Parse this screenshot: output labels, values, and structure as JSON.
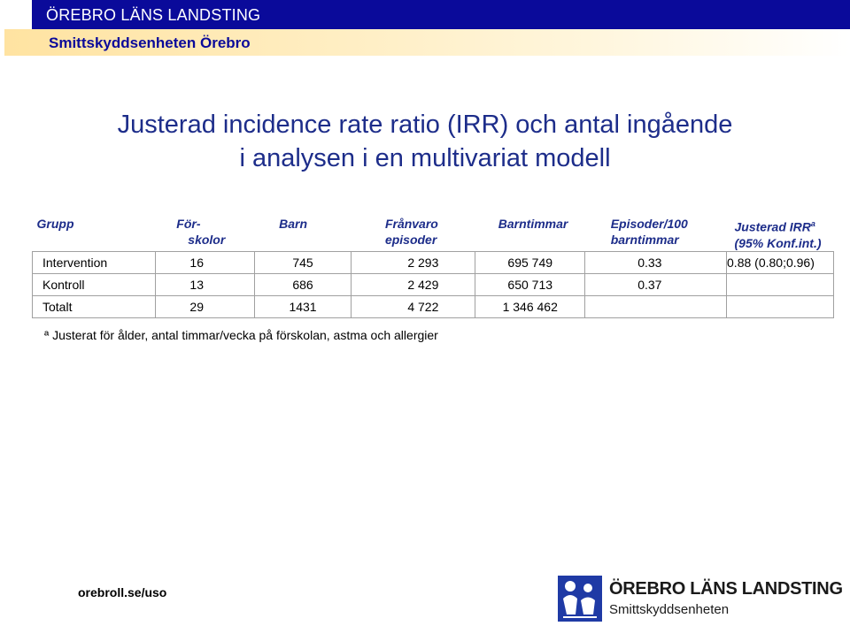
{
  "header": {
    "org_name": "ÖREBRO LÄNS LANDSTING",
    "unit_name": "Smittskyddsenheten Örebro"
  },
  "title": {
    "line1": "Justerad incidence rate ratio (IRR) och antal ingående",
    "line2": "i analysen i en multivariat modell"
  },
  "table": {
    "headers": {
      "grupp": "Grupp",
      "forskolor_1": "För-",
      "forskolor_2": "skolor",
      "barn": "Barn",
      "franvaro_1": "Frånvaro",
      "franvaro_2": "episoder",
      "barntimmar": "Barntimmar",
      "episoder_1": "Episoder/100",
      "episoder_2": "barntimmar",
      "irr_1": "Justerad IRR",
      "irr_sup": "a",
      "irr_2": "(95% Konf.int.)"
    },
    "rows": [
      {
        "grupp": "Intervention",
        "forskolor": "16",
        "barn": "745",
        "franvaro": "2 293",
        "barntimmar": "695 749",
        "episoder": "0.33",
        "irr": "0.88 (0.80;0.96)"
      },
      {
        "grupp": "Kontroll",
        "forskolor": "13",
        "barn": "686",
        "franvaro": "2 429",
        "barntimmar": "650 713",
        "episoder": "0.37",
        "irr": ""
      },
      {
        "grupp": "Totalt",
        "forskolor": "29",
        "barn": "1431",
        "franvaro": "4 722",
        "barntimmar": "1 346 462",
        "episoder": "",
        "irr": ""
      }
    ]
  },
  "footnote": "ª Justerat för ålder, antal timmar/vecka på förskolan, astma och allergier",
  "footer": {
    "link": "orebroll.se/uso",
    "logo_name": "ÖREBRO LÄNS LANDSTING",
    "logo_sub": "Smittskyddsenheten",
    "logo_color": "#1f3aa5"
  },
  "colors": {
    "header_blue": "#0a0a9a",
    "title_blue": "#1d2d8a"
  }
}
